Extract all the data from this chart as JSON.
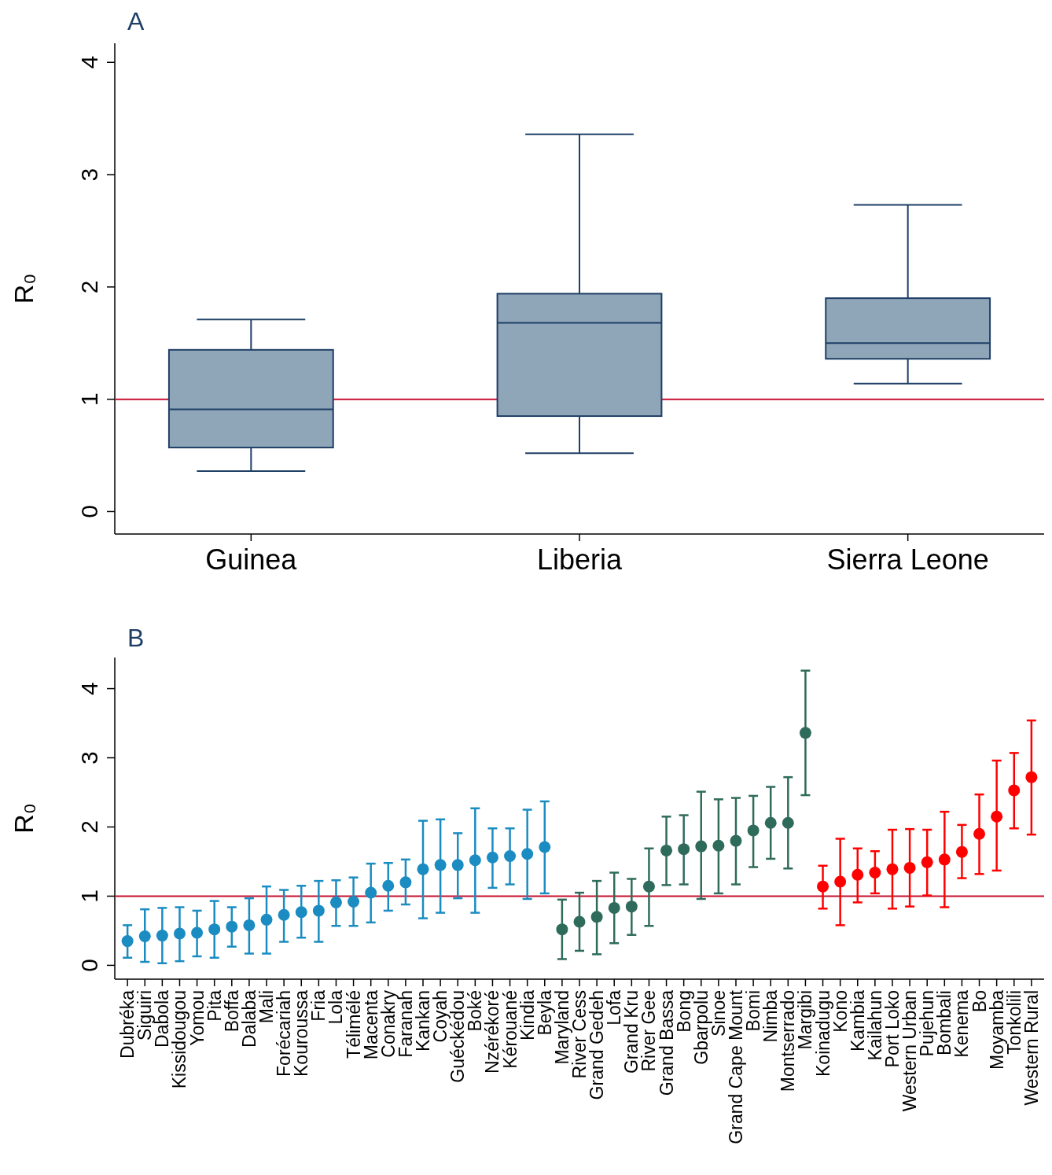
{
  "chart_data": [
    {
      "type": "box",
      "title": "A",
      "ylabel": "R₀",
      "categories": [
        "Guinea",
        "Liberia",
        "Sierra Leone"
      ],
      "color": "#8fa5b8",
      "boxes": [
        {
          "low": 0.36,
          "q1": 0.57,
          "median": 0.91,
          "q3": 1.44,
          "high": 1.71
        },
        {
          "low": 0.52,
          "q1": 0.85,
          "median": 1.68,
          "q3": 1.94,
          "high": 3.36
        },
        {
          "low": 1.14,
          "q1": 1.36,
          "median": 1.5,
          "q3": 1.9,
          "high": 2.73
        }
      ],
      "ylim": [
        -0.2,
        4.17
      ],
      "yticks": [
        0,
        1,
        2,
        3,
        4
      ],
      "ref_lines": [
        {
          "axis": "y",
          "value": 1,
          "color": "#c8102e"
        }
      ]
    },
    {
      "type": "scatter",
      "title": "B",
      "ylabel": "R₀",
      "marker": "circle",
      "categories": [
        "Dubréka",
        "Siguiri",
        "Dabola",
        "Kissidougou",
        "Yomou",
        "Pita",
        "Boffa",
        "Dalaba",
        "Mali",
        "Forécariah",
        "Kouroussa",
        "Fria",
        "Lola",
        "Télimélé",
        "Macenta",
        "Conakry",
        "Faranah",
        "Kankan",
        "Coyah",
        "Guéckédou",
        "Boké",
        "Nzérékoré",
        "Kérouané",
        "Kindia",
        "Beyla",
        "Maryland",
        "River Cess",
        "Grand Gedeh",
        "Lofa",
        "Grand Kru",
        "River Gee",
        "Grand Bassa",
        "Bong",
        "Gbarpolu",
        "Sinoe",
        "Grand Cape Mount",
        "Bomi",
        "Nimba",
        "Montserrado",
        "Margibi",
        "Koinadugu",
        "Kono",
        "Kambia",
        "Kailahun",
        "Port Loko",
        "Western Urban",
        "Pujehun",
        "Bombali",
        "Kenema",
        "Bo",
        "Moyamba",
        "Tonkolili",
        "Western Rural"
      ],
      "series": [
        {
          "color": "#1a8cc1",
          "values": [
            0.35,
            0.42,
            0.43,
            0.46,
            0.47,
            0.52,
            0.56,
            0.58,
            0.66,
            0.73,
            0.77,
            0.79,
            0.91,
            0.92,
            1.05,
            1.15,
            1.2,
            1.39,
            1.45,
            1.45,
            1.52,
            1.56,
            1.58,
            1.61,
            1.71,
            null,
            null,
            null,
            null,
            null,
            null,
            null,
            null,
            null,
            null,
            null,
            null,
            null,
            null,
            null,
            null,
            null,
            null,
            null,
            null,
            null,
            null,
            null,
            null,
            null,
            null,
            null,
            null
          ],
          "errors": [
            [
              0.11,
              0.58
            ],
            [
              0.05,
              0.81
            ],
            [
              0.03,
              0.83
            ],
            [
              0.06,
              0.84
            ],
            [
              0.13,
              0.79
            ],
            [
              0.11,
              0.93
            ],
            [
              0.27,
              0.84
            ],
            [
              0.17,
              0.97
            ],
            [
              0.17,
              1.14
            ],
            [
              0.34,
              1.09
            ],
            [
              0.4,
              1.15
            ],
            [
              0.34,
              1.22
            ],
            [
              0.57,
              1.23
            ],
            [
              0.57,
              1.27
            ],
            [
              0.62,
              1.47
            ],
            [
              0.79,
              1.48
            ],
            [
              0.88,
              1.53
            ],
            [
              0.68,
              2.09
            ],
            [
              0.76,
              2.11
            ],
            [
              0.97,
              1.91
            ],
            [
              0.76,
              2.27
            ],
            [
              1.12,
              1.98
            ],
            [
              1.17,
              1.98
            ],
            [
              0.96,
              2.25
            ],
            [
              1.04,
              2.37
            ],
            null,
            null,
            null,
            null,
            null,
            null,
            null,
            null,
            null,
            null,
            null,
            null,
            null,
            null,
            null,
            null,
            null,
            null,
            null,
            null,
            null,
            null,
            null,
            null,
            null,
            null,
            null,
            null
          ]
        },
        {
          "color": "#2f6b5b",
          "values": [
            null,
            null,
            null,
            null,
            null,
            null,
            null,
            null,
            null,
            null,
            null,
            null,
            null,
            null,
            null,
            null,
            null,
            null,
            null,
            null,
            null,
            null,
            null,
            null,
            null,
            0.52,
            0.63,
            0.7,
            0.83,
            0.85,
            1.14,
            1.66,
            1.68,
            1.72,
            1.73,
            1.8,
            1.95,
            2.06,
            2.06,
            3.36,
            null,
            null,
            null,
            null,
            null,
            null,
            null,
            null,
            null,
            null,
            null,
            null,
            null
          ],
          "errors": [
            null,
            null,
            null,
            null,
            null,
            null,
            null,
            null,
            null,
            null,
            null,
            null,
            null,
            null,
            null,
            null,
            null,
            null,
            null,
            null,
            null,
            null,
            null,
            null,
            null,
            [
              0.09,
              0.95
            ],
            [
              0.21,
              1.05
            ],
            [
              0.16,
              1.22
            ],
            [
              0.32,
              1.34
            ],
            [
              0.44,
              1.25
            ],
            [
              0.57,
              1.69
            ],
            [
              1.16,
              2.15
            ],
            [
              1.17,
              2.17
            ],
            [
              0.96,
              2.51
            ],
            [
              1.04,
              2.4
            ],
            [
              1.17,
              2.42
            ],
            [
              1.42,
              2.45
            ],
            [
              1.54,
              2.58
            ],
            [
              1.4,
              2.72
            ],
            [
              2.46,
              4.26
            ],
            null,
            null,
            null,
            null,
            null,
            null,
            null,
            null,
            null,
            null,
            null,
            null,
            null
          ]
        },
        {
          "color": "#ff0000",
          "values": [
            null,
            null,
            null,
            null,
            null,
            null,
            null,
            null,
            null,
            null,
            null,
            null,
            null,
            null,
            null,
            null,
            null,
            null,
            null,
            null,
            null,
            null,
            null,
            null,
            null,
            null,
            null,
            null,
            null,
            null,
            null,
            null,
            null,
            null,
            null,
            null,
            null,
            null,
            null,
            null,
            1.14,
            1.21,
            1.31,
            1.34,
            1.39,
            1.41,
            1.49,
            1.53,
            1.64,
            1.9,
            2.15,
            2.53,
            2.72
          ],
          "errors": [
            null,
            null,
            null,
            null,
            null,
            null,
            null,
            null,
            null,
            null,
            null,
            null,
            null,
            null,
            null,
            null,
            null,
            null,
            null,
            null,
            null,
            null,
            null,
            null,
            null,
            null,
            null,
            null,
            null,
            null,
            null,
            null,
            null,
            null,
            null,
            null,
            null,
            null,
            null,
            null,
            [
              0.82,
              1.44
            ],
            [
              0.58,
              1.83
            ],
            [
              0.91,
              1.69
            ],
            [
              1.04,
              1.65
            ],
            [
              0.82,
              1.96
            ],
            [
              0.85,
              1.97
            ],
            [
              1.01,
              1.96
            ],
            [
              0.84,
              2.22
            ],
            [
              1.26,
              2.03
            ],
            [
              1.32,
              2.47
            ],
            [
              1.37,
              2.96
            ],
            [
              1.98,
              3.07
            ],
            [
              1.89,
              3.54
            ]
          ]
        }
      ],
      "ylim": [
        -0.2,
        4.45
      ],
      "yticks": [
        0,
        1,
        2,
        3,
        4
      ],
      "ref_lines": [
        {
          "axis": "y",
          "value": 1,
          "color": "#c8102e"
        }
      ]
    }
  ]
}
